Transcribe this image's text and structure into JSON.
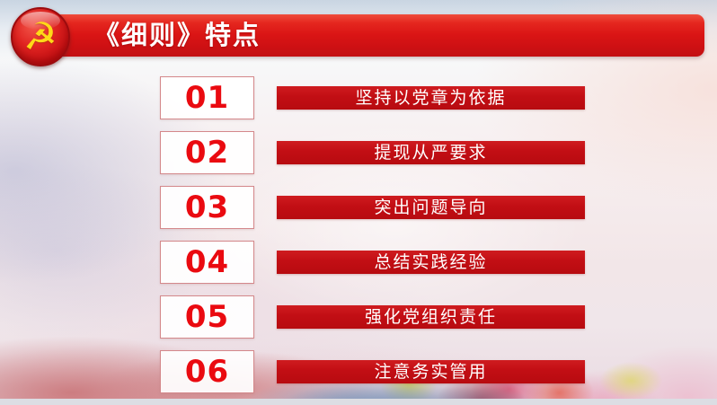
{
  "header": {
    "title": "《细则》特点",
    "emblem_icon": "party-emblem-hammer-sickle",
    "emblem_glyph": "☭"
  },
  "items": [
    {
      "number": "01",
      "label": "坚持以党章为依据"
    },
    {
      "number": "02",
      "label": "提现从严要求"
    },
    {
      "number": "03",
      "label": "突出问题导向"
    },
    {
      "number": "04",
      "label": "总结实践经验"
    },
    {
      "number": "05",
      "label": "强化党组织责任"
    },
    {
      "number": "06",
      "label": "注意务实管用"
    }
  ],
  "colors": {
    "header_red": "#d91515",
    "bar_red": "#c20e14",
    "number_red": "#ea0a10",
    "emblem_yellow": "#ffd918",
    "box_border_pink": "#d4888b",
    "bottom_strip_gray": "#dcdde3"
  }
}
